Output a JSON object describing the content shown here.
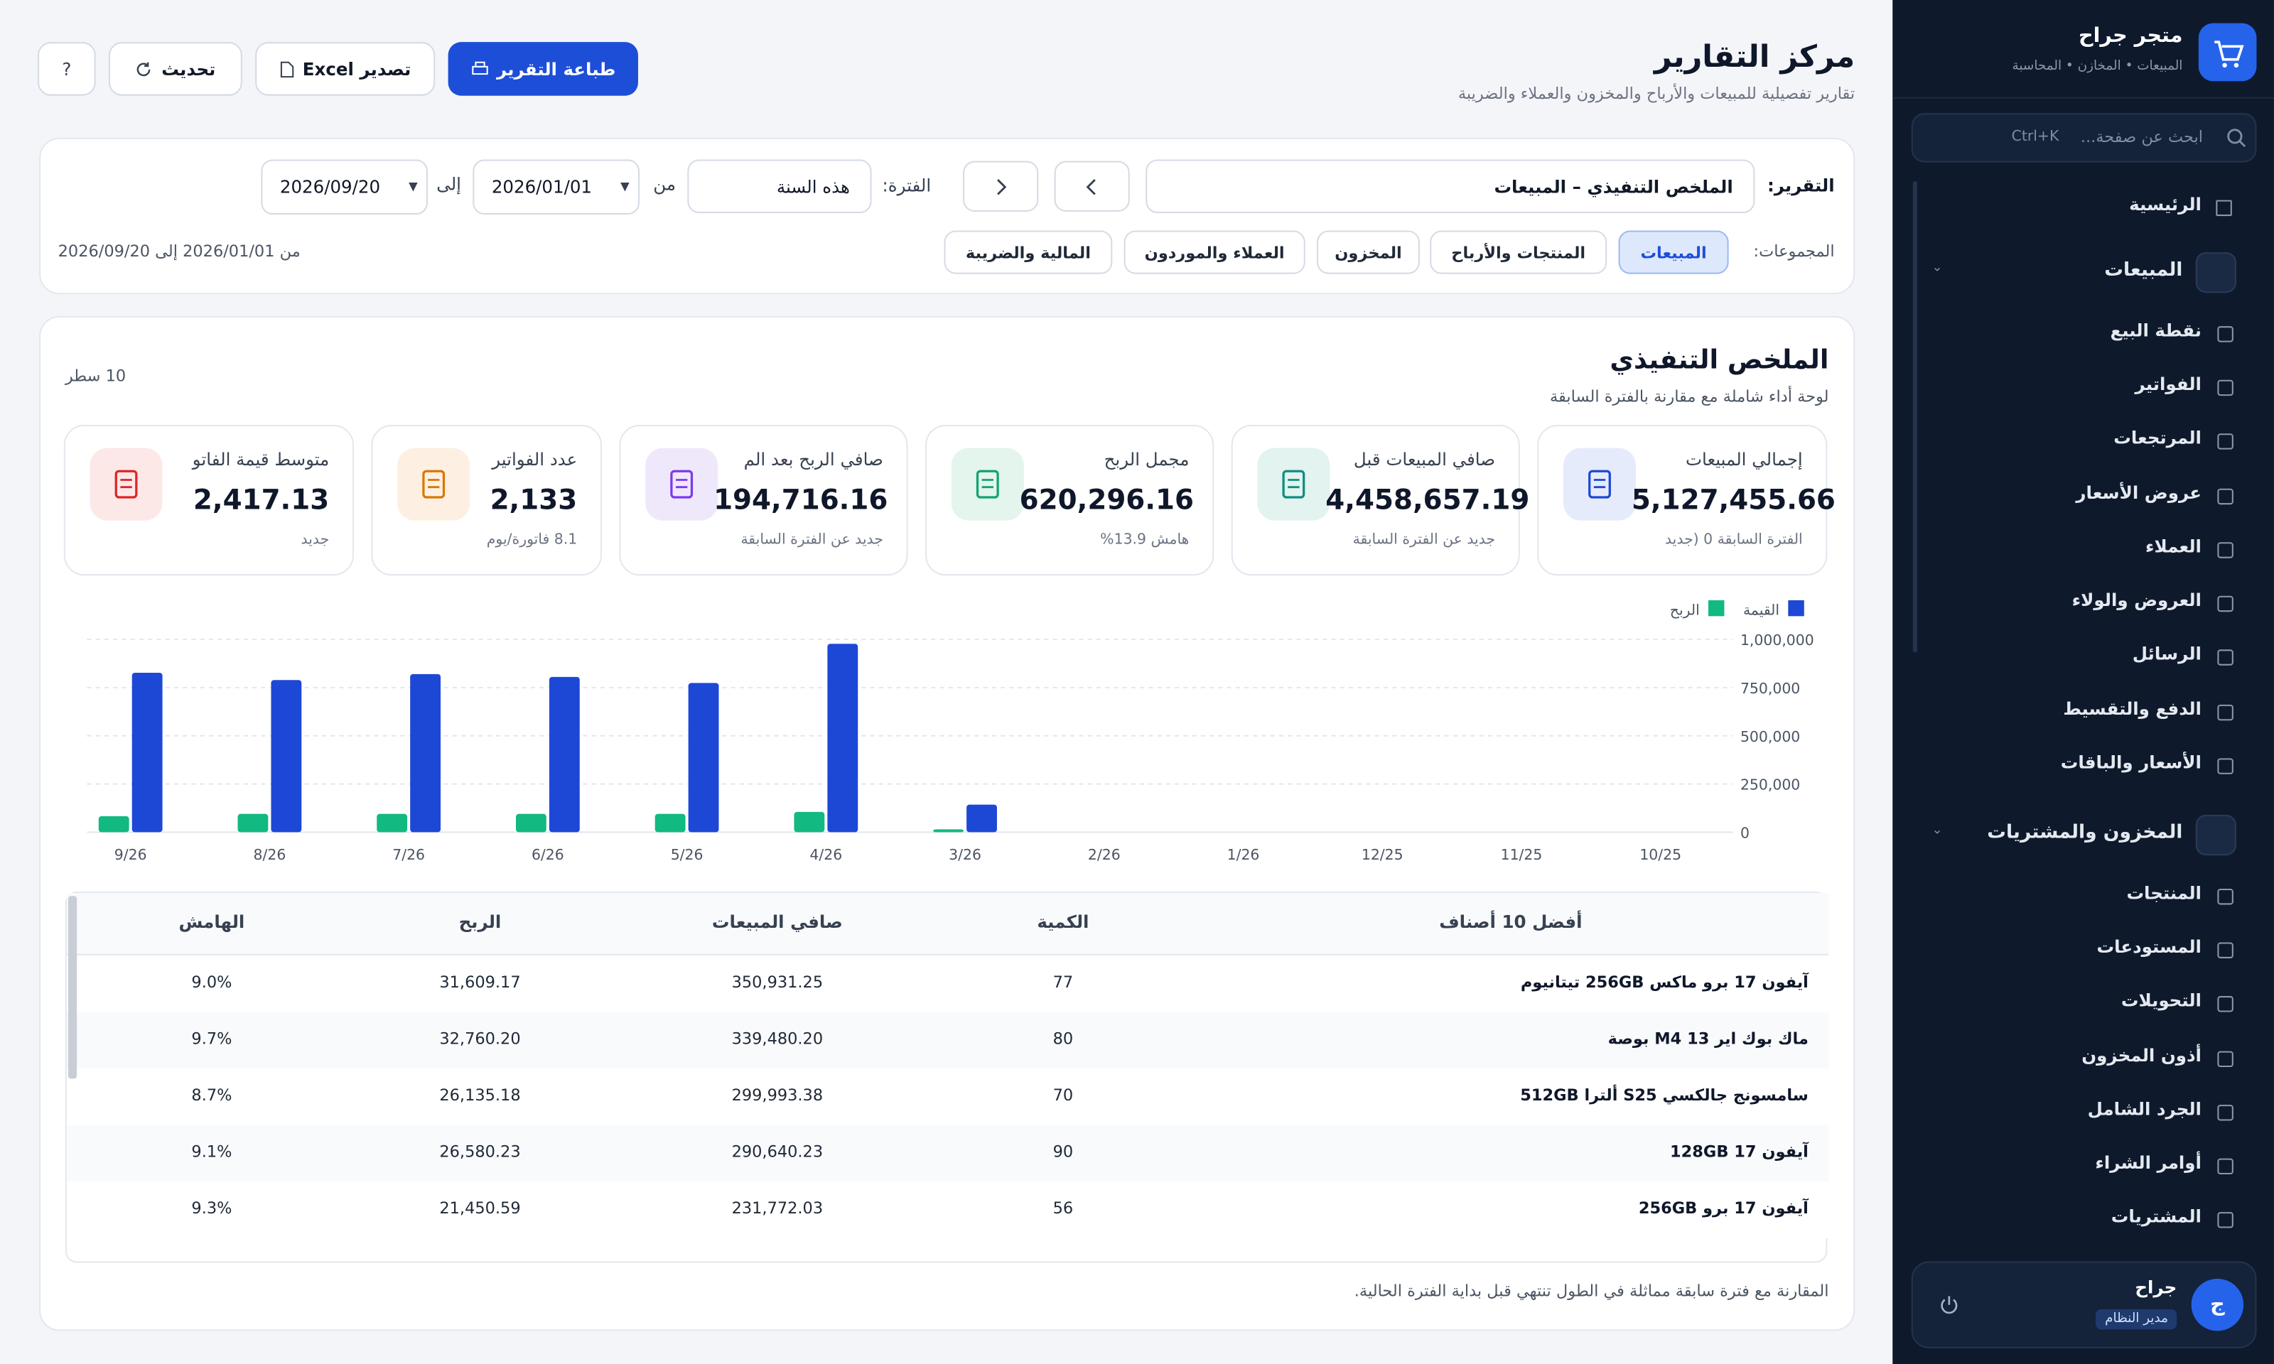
{
  "sidebar": {
    "brand": "متجر جراح",
    "brand_subtitle": "المبيعات • المخازن • المحاسبة",
    "search_placeholder": "ابحث عن صفحة...",
    "search_shortcut": "Ctrl+K",
    "nav": [
      {
        "label": "الرئيسية"
      },
      {
        "label": "المبيعات",
        "items": [
          "نقطة البيع",
          "الفواتير",
          "المرتجعات",
          "عروض الأسعار",
          "العملاء",
          "العروض والولاء",
          "الرسائل",
          "الدفع والتقسيط",
          "الأسعار والباقات"
        ]
      },
      {
        "label": "المخزون والمشتريات",
        "items": [
          "المنتجات",
          "المستودعات",
          "التحويلات",
          "أذون المخزون",
          "الجرد الشامل",
          "أوامر الشراء",
          "المشتريات"
        ]
      }
    ],
    "user": {
      "avatar": "ج",
      "name": "جراح",
      "role": "مدير النظام"
    }
  },
  "header": {
    "title": "مركز التقارير",
    "subtitle": "تقارير تفصيلية للمبيعات والأرباح والمخزون والعملاء والضريبة",
    "print": "طباعة التقرير",
    "export": "تصدير Excel",
    "refresh": "تحديث",
    "help": "?"
  },
  "filters": {
    "report_label": "التقرير:",
    "report_value": "الملخص التنفيذي  –  المبيعات",
    "period_label": "الفترة:",
    "period_value": "هذه السنة",
    "from_label": "من",
    "from_date": "2026/01/01",
    "to_label": "إلى",
    "to_date": "2026/09/20",
    "groups_label": "المجموعات:",
    "groups": [
      "المبيعات",
      "المنتجات والأرباح",
      "المخزون",
      "العملاء والموردون",
      "المالية والضريبة"
    ],
    "range_text": "من 2026/01/01 إلى 2026/09/20"
  },
  "section": {
    "title": "الملخص التنفيذي",
    "subtitle": "لوحة أداء شاملة مع مقارنة بالفترة السابقة",
    "rows_count": "10 سطر"
  },
  "kpis": [
    {
      "label": "إجمالي المبيعات",
      "value": "5,127,455.66",
      "note": "الفترة السابقة 0 (جديد"
    },
    {
      "label": "صافي المبيعات قبل",
      "value": "4,458,657.19",
      "note": "جديد عن الفترة السابقة"
    },
    {
      "label": "مجمل الربح",
      "value": "620,296.16",
      "note": "هامش 13.9%"
    },
    {
      "label": "صافي الربح بعد الم",
      "value": "194,716.16",
      "note": "جديد عن الفترة السابقة"
    },
    {
      "label": "عدد الفواتير",
      "value": "2,133",
      "note": "8.1 فاتورة/يوم"
    },
    {
      "label": "متوسط قيمة الفاتو",
      "value": "2,417.13",
      "note": "جديد"
    }
  ],
  "chart_data": {
    "type": "bar",
    "categories": [
      "10/25",
      "11/25",
      "12/25",
      "1/26",
      "2/26",
      "3/26",
      "4/26",
      "5/26",
      "6/26",
      "7/26",
      "8/26",
      "9/26"
    ],
    "series": [
      {
        "name": "القيمة",
        "color": "#1d48d6",
        "values": [
          0,
          0,
          0,
          0,
          0,
          143000,
          977000,
          774000,
          805000,
          820000,
          789000,
          827000
        ]
      },
      {
        "name": "الربح",
        "color": "#12b981",
        "values": [
          0,
          0,
          0,
          0,
          0,
          15000,
          105000,
          95000,
          95000,
          95000,
          95000,
          83000
        ]
      }
    ],
    "ylim": [
      0,
      1000000
    ],
    "yticks": [
      0,
      {
        "value": 250000,
        "label": "250,000"
      },
      {
        "value": 500000,
        "label": "500,000"
      },
      {
        "value": 750000,
        "label": "750,000"
      },
      {
        "value": 1000000,
        "label": "1,000,000"
      }
    ],
    "grid": true,
    "legend": "top-right"
  },
  "table": {
    "headers": [
      "أفضل 10 أصناف",
      "الكمية",
      "صافي المبيعات",
      "الربح",
      "الهامش"
    ],
    "rows": [
      [
        "آيفون 17 برو ماكس 256GB تيتانيوم",
        "77",
        "350,931.25",
        "31,609.17",
        "9.0%"
      ],
      [
        "ماك بوك اير 13 M4 بوصة",
        "80",
        "339,480.20",
        "32,760.20",
        "9.7%"
      ],
      [
        "سامسونج جالكسي S25 ألترا 512GB",
        "70",
        "299,993.38",
        "26,135.18",
        "8.7%"
      ],
      [
        "آيفون 17 128GB",
        "90",
        "290,640.23",
        "26,580.23",
        "9.1%"
      ],
      [
        "آيفون 17 برو 256GB",
        "56",
        "231,772.03",
        "21,450.59",
        "9.3%"
      ]
    ]
  },
  "footnote": "المقارنة مع فترة سابقة مماثلة في الطول تنتهي قبل بداية الفترة الحالية."
}
